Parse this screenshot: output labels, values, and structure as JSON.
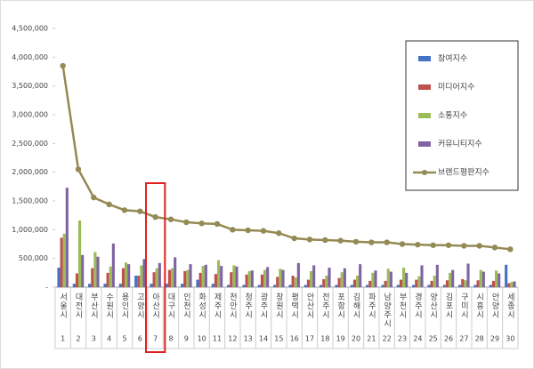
{
  "chart_data": {
    "type": "bar_line",
    "categories": [
      "서울시",
      "대전시",
      "부산시",
      "수원시",
      "용인시",
      "고양시",
      "아산시",
      "대구시",
      "인천시",
      "화성시",
      "제주시",
      "천안시",
      "청주시",
      "광주시",
      "창원시",
      "평택시",
      "안산시",
      "전주시",
      "포항시",
      "김해시",
      "파주시",
      "남양주시",
      "부천시",
      "경주시",
      "양산시",
      "김포시",
      "구미시",
      "시흥시",
      "안양시",
      "세종시"
    ],
    "ranks": [
      1,
      2,
      3,
      4,
      5,
      6,
      7,
      8,
      9,
      10,
      11,
      12,
      13,
      14,
      15,
      16,
      17,
      18,
      19,
      20,
      21,
      22,
      23,
      24,
      25,
      26,
      27,
      28,
      29,
      30
    ],
    "series": [
      {
        "name": "참여지수",
        "kind": "bar",
        "color": "#4472c4",
        "values": [
          340000,
          60000,
          60000,
          60000,
          60000,
          200000,
          60000,
          60000,
          60000,
          130000,
          60000,
          40000,
          40000,
          40000,
          40000,
          40000,
          40000,
          40000,
          40000,
          40000,
          40000,
          40000,
          40000,
          40000,
          40000,
          40000,
          40000,
          40000,
          40000,
          390000
        ]
      },
      {
        "name": "미디어지수",
        "kind": "bar",
        "color": "#c0504d",
        "values": [
          860000,
          240000,
          330000,
          250000,
          330000,
          200000,
          260000,
          300000,
          280000,
          250000,
          230000,
          260000,
          220000,
          220000,
          180000,
          200000,
          130000,
          140000,
          160000,
          130000,
          110000,
          110000,
          130000,
          130000,
          110000,
          120000,
          140000,
          120000,
          110000,
          70000
        ]
      },
      {
        "name": "소통지수",
        "kind": "bar",
        "color": "#9bbb59",
        "values": [
          930000,
          1160000,
          610000,
          360000,
          430000,
          380000,
          330000,
          330000,
          300000,
          370000,
          470000,
          380000,
          280000,
          300000,
          320000,
          170000,
          280000,
          200000,
          260000,
          200000,
          250000,
          320000,
          340000,
          190000,
          200000,
          250000,
          120000,
          300000,
          290000,
          90000
        ]
      },
      {
        "name": "커뮤니티지수",
        "kind": "bar",
        "color": "#8064a2",
        "values": [
          1730000,
          560000,
          530000,
          760000,
          400000,
          490000,
          420000,
          520000,
          400000,
          390000,
          370000,
          360000,
          290000,
          350000,
          300000,
          420000,
          380000,
          340000,
          330000,
          400000,
          290000,
          270000,
          250000,
          380000,
          390000,
          300000,
          410000,
          270000,
          240000,
          100000
        ]
      },
      {
        "name": "브랜드평판지수",
        "kind": "line",
        "color": "#948a54",
        "values": [
          3850000,
          2050000,
          1560000,
          1440000,
          1340000,
          1320000,
          1220000,
          1180000,
          1130000,
          1110000,
          1100000,
          1000000,
          990000,
          980000,
          940000,
          850000,
          830000,
          820000,
          810000,
          790000,
          780000,
          780000,
          750000,
          740000,
          730000,
          730000,
          720000,
          720000,
          690000,
          660000
        ]
      }
    ],
    "ylim": [
      0,
      4500000
    ],
    "yticks": [
      {
        "value": 0,
        "label": "-"
      },
      {
        "value": 500000,
        "label": "500,000"
      },
      {
        "value": 1000000,
        "label": "1,000,000"
      },
      {
        "value": 1500000,
        "label": "1,500,000"
      },
      {
        "value": 2000000,
        "label": "2,000,000"
      },
      {
        "value": 2500000,
        "label": "2,500,000"
      },
      {
        "value": 3000000,
        "label": "3,000,000"
      },
      {
        "value": 3500000,
        "label": "3,500,000"
      },
      {
        "value": 4000000,
        "label": "4,000,000"
      },
      {
        "value": 4500000,
        "label": "4,500,000"
      }
    ],
    "grid": false,
    "legend": "upper right"
  }
}
